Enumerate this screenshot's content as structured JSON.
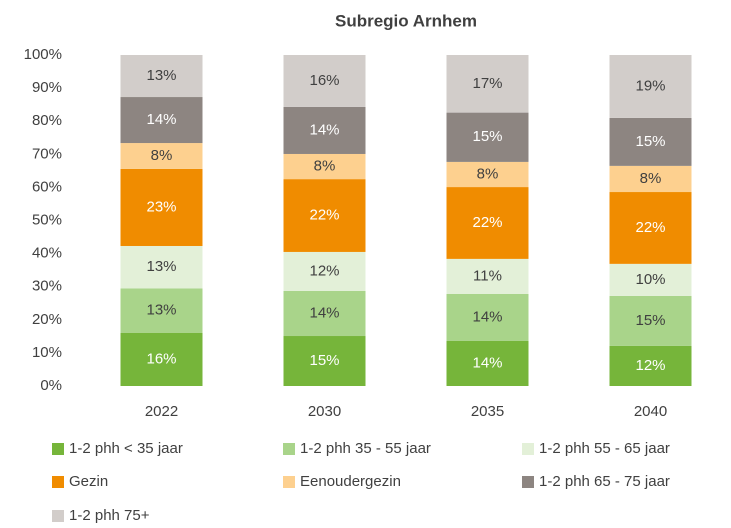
{
  "chart_data": {
    "type": "stacked_bar",
    "title": "Subregio Arnhem",
    "categories": [
      "2022",
      "2030",
      "2035",
      "2040"
    ],
    "series": [
      {
        "name": "1-2 phh < 35 jaar",
        "color": "#76b53a",
        "values": [
          16.1,
          15.1,
          13.6,
          12.1
        ],
        "value_labels": [
          "16%",
          "15%",
          "14%",
          "12%"
        ]
      },
      {
        "name": "1-2 phh 35 - 55 jaar",
        "color": "#a9d48a",
        "values": [
          13.4,
          13.6,
          14.2,
          15.1
        ],
        "value_labels": [
          "13%",
          "14%",
          "14%",
          "15%"
        ]
      },
      {
        "name": "1-2 phh 55 - 65 jaar",
        "color": "#e3f0d8",
        "values": [
          12.8,
          11.8,
          10.6,
          9.7
        ],
        "value_labels": [
          "13%",
          "12%",
          "11%",
          "10%"
        ]
      },
      {
        "name": "Gezin",
        "color": "#f08c00",
        "values": [
          23.3,
          22.0,
          21.7,
          21.7
        ],
        "value_labels": [
          "23%",
          "22%",
          "22%",
          "22%"
        ]
      },
      {
        "name": "Eenoudergezin",
        "color": "#fdd08f",
        "values": [
          7.8,
          7.6,
          7.6,
          7.9
        ],
        "value_labels": [
          "8%",
          "8%",
          "8%",
          "8%"
        ]
      },
      {
        "name": "1-2 phh 65 - 75 jaar",
        "color": "#8d8581",
        "values": [
          13.9,
          14.2,
          14.9,
          14.5
        ],
        "value_labels": [
          "14%",
          "14%",
          "15%",
          "15%"
        ]
      },
      {
        "name": "1-2 phh 75+",
        "color": "#d2cdca",
        "values": [
          12.7,
          15.7,
          17.4,
          19.0
        ],
        "value_labels": [
          "13%",
          "16%",
          "17%",
          "19%"
        ]
      }
    ],
    "ylim": [
      0,
      100
    ],
    "yticks": [
      {
        "value": 0,
        "label": "0%"
      },
      {
        "value": 10,
        "label": "10%"
      },
      {
        "value": 20,
        "label": "20%"
      },
      {
        "value": 30,
        "label": "30%"
      },
      {
        "value": 40,
        "label": "40%"
      },
      {
        "value": 50,
        "label": "50%"
      },
      {
        "value": 60,
        "label": "60%"
      },
      {
        "value": 70,
        "label": "70%"
      },
      {
        "value": 80,
        "label": "80%"
      },
      {
        "value": 90,
        "label": "90%"
      },
      {
        "value": 100,
        "label": "100%"
      }
    ],
    "grid": false,
    "legend": "bottom"
  }
}
